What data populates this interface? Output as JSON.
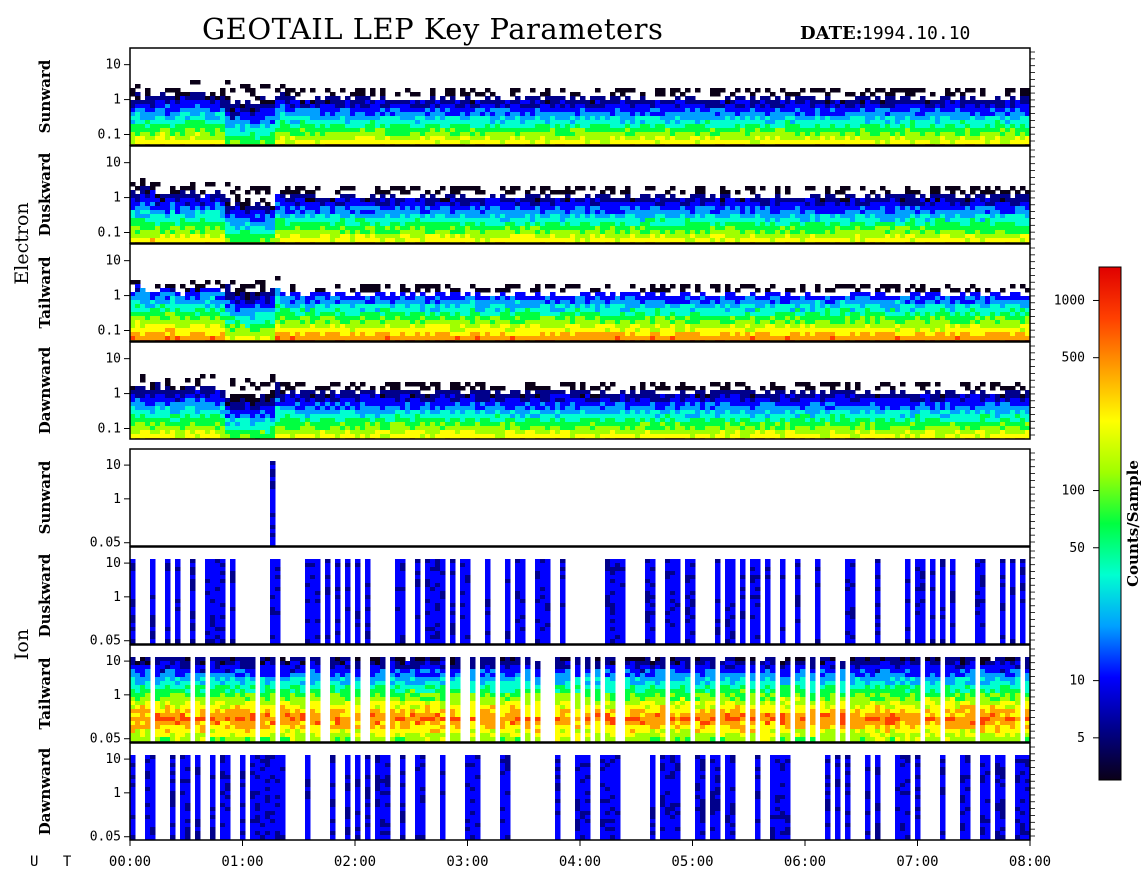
{
  "header": {
    "title": "GEOTAIL LEP Key Parameters",
    "date_label": "DATE:",
    "date_value": "1994.10.10"
  },
  "chart_data": {
    "type": "heatmap",
    "x_axis_label": "U T",
    "x_ticks": [
      "00:00",
      "01:00",
      "02:00",
      "03:00",
      "04:00",
      "05:00",
      "06:00",
      "07:00",
      "08:00"
    ],
    "x_range_hours": [
      0,
      8
    ],
    "y_scale": "log",
    "groups": [
      {
        "name": "Electron",
        "panels": [
          {
            "name": "Sunward",
            "y_ticks": [
              "10",
              "1",
              "0.1"
            ],
            "y_tick_values": [
              10,
              1,
              0.1
            ]
          },
          {
            "name": "Duskward",
            "y_ticks": [
              "10",
              "1",
              "0.1"
            ],
            "y_tick_values": [
              10,
              1,
              0.1
            ]
          },
          {
            "name": "Tailward",
            "y_ticks": [
              "10",
              "1",
              "0.1"
            ],
            "y_tick_values": [
              10,
              1,
              0.1
            ]
          },
          {
            "name": "Dawnward",
            "y_ticks": [
              "10",
              "1",
              "0.1"
            ],
            "y_tick_values": [
              10,
              1,
              0.1
            ]
          }
        ]
      },
      {
        "name": "Ion",
        "panels": [
          {
            "name": "Sunward",
            "y_ticks": [
              "10",
              "1",
              "0.05"
            ],
            "y_tick_values": [
              10,
              1,
              0.05
            ]
          },
          {
            "name": "Duskward",
            "y_ticks": [
              "10",
              "1",
              "0.05"
            ],
            "y_tick_values": [
              10,
              1,
              0.05
            ]
          },
          {
            "name": "Tailward",
            "y_ticks": [
              "10",
              "1",
              "0.05"
            ],
            "y_tick_values": [
              10,
              1,
              0.05
            ]
          },
          {
            "name": "Dawnward",
            "y_ticks": [
              "10",
              "1",
              "0.05"
            ],
            "y_tick_values": [
              10,
              1,
              0.05
            ]
          }
        ]
      }
    ],
    "colorbar": {
      "label": "Counts/Sample",
      "scale": "log",
      "range": [
        3,
        1500
      ],
      "ticks": [
        "1000",
        "500",
        "100",
        "50",
        "10",
        "5"
      ],
      "tick_values": [
        1000,
        500,
        100,
        50,
        10,
        5
      ],
      "colors": [
        "#0a0018",
        "#00008b",
        "#0000ff",
        "#00a0ff",
        "#00ffd0",
        "#00ff40",
        "#a0ff00",
        "#ffff00",
        "#ffa000",
        "#ff4000",
        "#e00000"
      ]
    }
  }
}
